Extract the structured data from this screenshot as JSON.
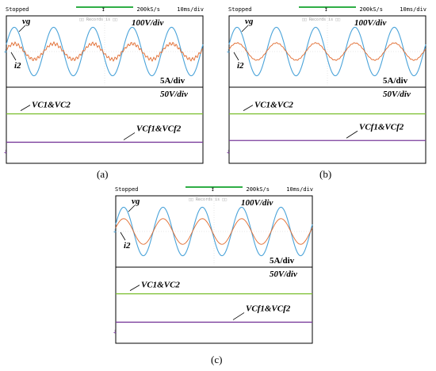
{
  "scope_header": {
    "status": "Stopped",
    "rate": "200kS/s",
    "timebase": "10ms/div",
    "watermark": "□□ Records is □□"
  },
  "labels": {
    "vg": "vg",
    "i2": "i2",
    "v_scale": "100V/div",
    "i_scale": "5A/div",
    "dc_scale": "50V/div",
    "vc": "VC1&VC2",
    "vcf": "VCf1&VCf2"
  },
  "colors": {
    "grid_line": "#000000",
    "vg": "#4aa3d9",
    "i2": "#e0692c",
    "vc": "#7bbf2f",
    "vcf": "#7a3c9c"
  },
  "chart_data": [
    {
      "panel": "(a)",
      "type": "line",
      "series": [
        {
          "name": "vg",
          "cycles": 5,
          "amplitude_div": 1.7,
          "phase": "in phase with i2"
        },
        {
          "name": "i2",
          "cycles": 5,
          "amplitude_div": 0.55,
          "ripple": "high"
        },
        {
          "name": "VC1&VC2",
          "level_div": 1.2
        },
        {
          "name": "VCf1&VCf2",
          "level_div": 0.7
        }
      ]
    },
    {
      "panel": "(b)",
      "type": "line",
      "series": [
        {
          "name": "vg",
          "cycles": 5,
          "amplitude_div": 1.7
        },
        {
          "name": "i2",
          "cycles": 5,
          "amplitude_div": 0.6,
          "ripple": "low"
        },
        {
          "name": "VC1&VC2",
          "level_div": 1.2
        },
        {
          "name": "VCf1&VCf2",
          "level_div": 0.75
        }
      ]
    },
    {
      "panel": "(c)",
      "type": "line",
      "series": [
        {
          "name": "vg",
          "cycles": 5,
          "amplitude_div": 1.7
        },
        {
          "name": "i2",
          "cycles": 5,
          "amplitude_div": 0.9,
          "ripple": "none"
        },
        {
          "name": "VC1&VC2",
          "level_div": 1.2
        },
        {
          "name": "VCf1&VCf2",
          "level_div": 0.7
        }
      ]
    }
  ],
  "captions": [
    "(a)",
    "(b)",
    "(c)"
  ]
}
